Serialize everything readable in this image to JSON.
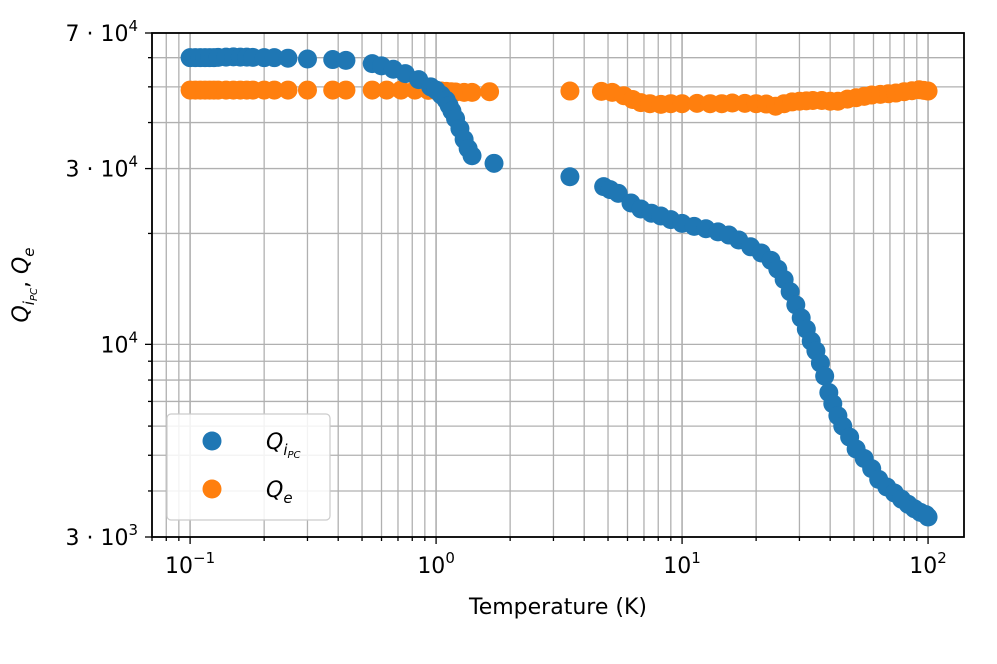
{
  "chart_data": {
    "type": "scatter",
    "title": "",
    "xlabel": "Temperature (K)",
    "ylabel": {
      "base": "Q",
      "sub1": "i",
      "sub2": "PC",
      "sep": ", ",
      "base2": "Q",
      "sub3": "e"
    },
    "xscale": "log",
    "yscale": "log",
    "xlim": [
      0.07,
      140
    ],
    "ylim": [
      3000,
      70000
    ],
    "grid": true,
    "grid_style": "major and minor",
    "legend_location": "lower-left",
    "x_ticks": [
      {
        "value": 0.1,
        "base": "10",
        "exp": "−1"
      },
      {
        "value": 1,
        "base": "10",
        "exp": "0"
      },
      {
        "value": 10,
        "base": "10",
        "exp": "1"
      },
      {
        "value": 100,
        "base": "10",
        "exp": "2"
      }
    ],
    "y_ticks": [
      {
        "value": 3000,
        "base": "3 · 10",
        "exp": "3"
      },
      {
        "value": 10000,
        "base": "10",
        "exp": "4"
      },
      {
        "value": 30000,
        "base": "3 · 10",
        "exp": "4"
      },
      {
        "value": 70000,
        "base": "7 · 10",
        "exp": "4"
      }
    ],
    "series": [
      {
        "name": {
          "base": "Q",
          "sub1": "i",
          "sub2": "PC"
        },
        "color": "#1f77b4",
        "x": [
          0.1,
          0.105,
          0.11,
          0.115,
          0.12,
          0.125,
          0.13,
          0.14,
          0.15,
          0.16,
          0.17,
          0.18,
          0.2,
          0.22,
          0.25,
          0.3,
          0.38,
          0.43,
          0.55,
          0.6,
          0.67,
          0.75,
          0.85,
          0.95,
          1.0,
          1.05,
          1.1,
          1.13,
          1.16,
          1.2,
          1.25,
          1.3,
          1.35,
          1.4,
          1.72,
          3.5,
          4.8,
          5.1,
          5.5,
          6.2,
          6.8,
          7.5,
          8.2,
          9.0,
          10.0,
          11.2,
          12.5,
          14.0,
          15.5,
          17.0,
          19.0,
          21.0,
          23.0,
          24.5,
          26.0,
          27.5,
          29.0,
          30.5,
          32.0,
          33.5,
          35.0,
          36.5,
          38.0,
          39.5,
          41.0,
          43.0,
          45.0,
          48.0,
          51.0,
          55.0,
          59.0,
          63.0,
          68.0,
          73.0,
          78.0,
          83.0,
          88.0,
          93.0,
          98.0,
          100.0
        ],
        "y": [
          60000,
          60000,
          60000,
          60000,
          60000,
          60000,
          60100,
          60200,
          60300,
          60200,
          60200,
          60100,
          60000,
          60000,
          59800,
          59500,
          59300,
          59000,
          57800,
          57000,
          55800,
          54300,
          52300,
          50000,
          49000,
          47500,
          46000,
          44500,
          43000,
          41000,
          38500,
          36000,
          34000,
          32500,
          31000,
          28500,
          26800,
          26300,
          25700,
          24200,
          23300,
          22700,
          22300,
          21800,
          21300,
          20900,
          20600,
          20200,
          19800,
          19200,
          18400,
          17700,
          16900,
          16000,
          15000,
          13900,
          12800,
          11800,
          11000,
          10200,
          9600,
          8900,
          8200,
          7400,
          6900,
          6400,
          6000,
          5600,
          5200,
          4900,
          4600,
          4300,
          4100,
          3950,
          3800,
          3680,
          3580,
          3500,
          3450,
          3400
        ]
      },
      {
        "name": {
          "base": "Q",
          "sub1": "e",
          "sub2": ""
        },
        "color": "#ff7f0e",
        "x": [
          0.1,
          0.105,
          0.11,
          0.115,
          0.12,
          0.125,
          0.13,
          0.14,
          0.15,
          0.16,
          0.17,
          0.18,
          0.2,
          0.22,
          0.25,
          0.3,
          0.38,
          0.43,
          0.55,
          0.63,
          0.72,
          0.82,
          0.93,
          1.0,
          1.05,
          1.1,
          1.15,
          1.2,
          1.3,
          1.4,
          1.65,
          3.5,
          4.7,
          5.2,
          5.8,
          6.3,
          6.8,
          7.4,
          8.2,
          9.0,
          10.0,
          11.5,
          13.0,
          14.5,
          16.0,
          18.0,
          20.0,
          22.0,
          24.0,
          26.0,
          28.0,
          30.0,
          32.0,
          34.0,
          37.0,
          40.0,
          43.0,
          47.0,
          51.0,
          55.0,
          59.0,
          64.0,
          69.0,
          74.0,
          80.0,
          86.0,
          92.0,
          96.0,
          100.0
        ],
        "y": [
          49000,
          49000,
          49000,
          49000,
          49000,
          49000,
          49000,
          49000,
          49000,
          49000,
          49000,
          49000,
          49000,
          49000,
          49000,
          49000,
          49000,
          49000,
          49000,
          49000,
          49000,
          49000,
          48900,
          48800,
          48700,
          48600,
          48500,
          48400,
          48300,
          48300,
          48500,
          48700,
          48600,
          48300,
          47300,
          46200,
          45300,
          45000,
          44800,
          45000,
          45000,
          45100,
          45000,
          45000,
          45200,
          45100,
          45000,
          44900,
          44300,
          45000,
          45500,
          45700,
          45800,
          45900,
          45900,
          45700,
          45700,
          46300,
          46700,
          47100,
          47500,
          47700,
          47900,
          48100,
          48500,
          48800,
          49100,
          48900,
          48700
        ]
      }
    ]
  }
}
